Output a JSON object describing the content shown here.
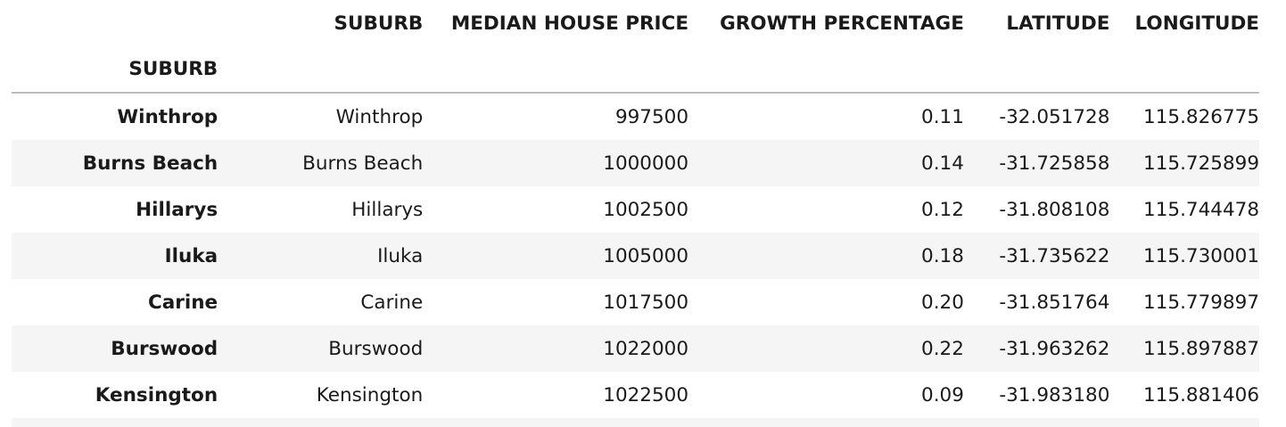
{
  "table": {
    "index_name": "SUBURB",
    "columns": [
      "SUBURB",
      "MEDIAN HOUSE PRICE",
      "GROWTH PERCENTAGE",
      "LATITUDE",
      "LONGITUDE"
    ],
    "rows": [
      {
        "index": "Winthrop",
        "cells": [
          "Winthrop",
          "997500",
          "0.11",
          "-32.051728",
          "115.826775"
        ]
      },
      {
        "index": "Burns Beach",
        "cells": [
          "Burns Beach",
          "1000000",
          "0.14",
          "-31.725858",
          "115.725899"
        ]
      },
      {
        "index": "Hillarys",
        "cells": [
          "Hillarys",
          "1002500",
          "0.12",
          "-31.808108",
          "115.744478"
        ]
      },
      {
        "index": "Iluka",
        "cells": [
          "Iluka",
          "1005000",
          "0.18",
          "-31.735622",
          "115.730001"
        ]
      },
      {
        "index": "Carine",
        "cells": [
          "Carine",
          "1017500",
          "0.20",
          "-31.851764",
          "115.779897"
        ]
      },
      {
        "index": "Burswood",
        "cells": [
          "Burswood",
          "1022000",
          "0.22",
          "-31.963262",
          "115.897887"
        ]
      },
      {
        "index": "Kensington",
        "cells": [
          "Kensington",
          "1022500",
          "0.09",
          "-31.983180",
          "115.881406"
        ]
      }
    ]
  }
}
